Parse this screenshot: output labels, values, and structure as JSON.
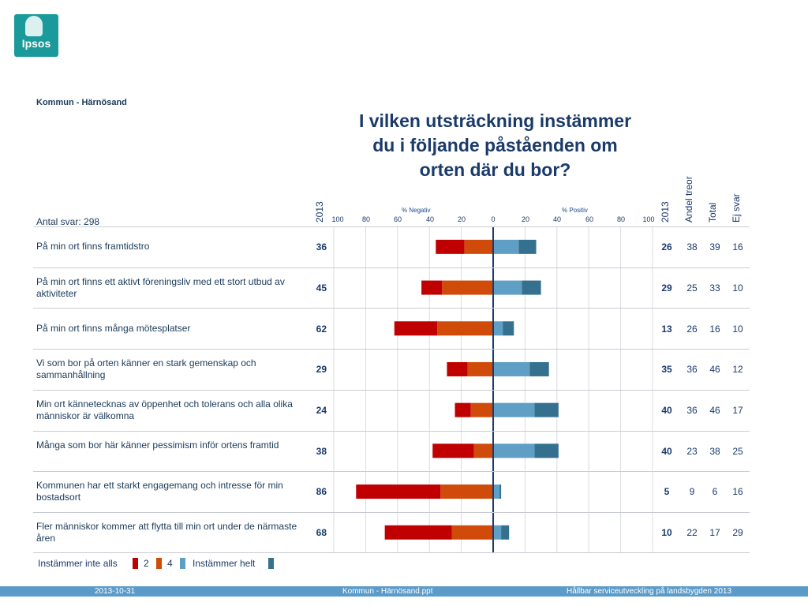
{
  "logo": {
    "text": "Ipsos"
  },
  "header": {
    "region": "Kommun - Härnösand",
    "title": "I vilken utsträckning instämmer du i följande påståenden om orten där du bor?",
    "count": "Antal svar: 298"
  },
  "columns": {
    "neg_year": "2013",
    "pos_year": "2013",
    "andel": "Andel treor",
    "total": "Total",
    "ejsvar": "Ej svar",
    "neg_axis": "% Negativ",
    "pos_axis": "% Positiv"
  },
  "ticks": [
    "100",
    "80",
    "60",
    "40",
    "20",
    "0",
    "20",
    "40",
    "60",
    "80",
    "100"
  ],
  "colors": {
    "neg_strong": "#c00000",
    "neg_mild": "#d04a0a",
    "pos_mild": "#5f9fc6",
    "pos_strong": "#36708f",
    "center_line": "#1a3a6a"
  },
  "chart_data": {
    "type": "bar",
    "orientation": "horizontal-diverging",
    "xlim": [
      -100,
      100
    ],
    "series": [
      {
        "name": "Instämmer inte alls",
        "values": [
          18,
          13,
          27,
          13,
          10,
          26,
          53,
          42
        ]
      },
      {
        "name": "2",
        "values": [
          18,
          32,
          35,
          16,
          14,
          12,
          33,
          26
        ]
      },
      {
        "name": "4",
        "values": [
          16,
          18,
          6,
          23,
          26,
          26,
          4,
          5
        ]
      },
      {
        "name": "Instämmer helt",
        "values": [
          11,
          12,
          7,
          12,
          15,
          15,
          1,
          5
        ]
      }
    ],
    "categories": [
      "På min ort finns framtidstro",
      "På min ort finns ett aktivt föreningsliv med ett stort utbud av aktiviteter",
      "På min ort finns många mötesplatser",
      "Vi som bor på orten känner en stark gemenskap och sammanhållning",
      "Min ort kännetecknas av öppenhet och tolerans och alla olika människor är välkomna",
      "Många som bor här känner pessimism inför ortens framtid",
      "Kommunen har ett starkt engagemang och intresse för min bostadsort",
      "Fler människor kommer att flytta till min ort under de närmaste åren"
    ]
  },
  "rows": [
    {
      "statement": "På min ort finns framtidstro",
      "neg": "36",
      "pos": "26",
      "andel": "38",
      "total": "39",
      "ejsvar": "16"
    },
    {
      "statement": "På min ort finns ett aktivt föreningsliv med ett stort utbud av aktiviteter",
      "neg": "45",
      "pos": "29",
      "andel": "25",
      "total": "33",
      "ejsvar": "10"
    },
    {
      "statement": "På min ort finns många mötesplatser",
      "neg": "62",
      "pos": "13",
      "andel": "26",
      "total": "16",
      "ejsvar": "10"
    },
    {
      "statement": "Vi som bor på orten känner en stark gemenskap och sammanhållning",
      "neg": "29",
      "pos": "35",
      "andel": "36",
      "total": "46",
      "ejsvar": "12"
    },
    {
      "statement": "Min ort kännetecknas av öppenhet och tolerans och alla olika människor är välkomna",
      "neg": "24",
      "pos": "40",
      "andel": "36",
      "total": "46",
      "ejsvar": "17"
    },
    {
      "statement": "Många som bor här känner pessimism inför ortens framtid",
      "neg": "38",
      "pos": "40",
      "andel": "23",
      "total": "38",
      "ejsvar": "25"
    },
    {
      "statement": "Kommunen har ett starkt engagemang och intresse för min bostadsort",
      "neg": "86",
      "pos": "5",
      "andel": "9",
      "total": "6",
      "ejsvar": "16"
    },
    {
      "statement": "Fler människor kommer att flytta till min ort under de närmaste åren",
      "neg": "68",
      "pos": "10",
      "andel": "22",
      "total": "17",
      "ejsvar": "29"
    }
  ],
  "legend": {
    "left_label": "Instämmer inte alls",
    "label_2": "2",
    "label_4": "4",
    "right_label": "Instämmer helt"
  },
  "footer": {
    "date": "2013-10-31",
    "file": "Kommun - Härnösand.ppt",
    "project": "Hållbar serviceutveckling på landsbygden 2013"
  }
}
